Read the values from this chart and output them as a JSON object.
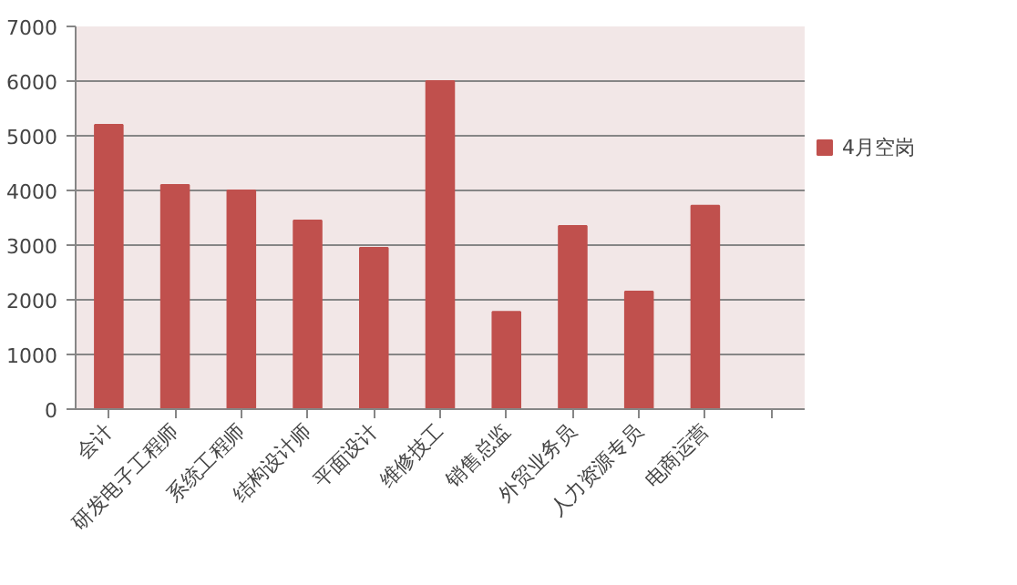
{
  "chart_data": {
    "type": "bar",
    "categories": [
      "会计",
      "研发电子工程师",
      "系统工程师",
      "结构设计师",
      "平面设计",
      "维修技工",
      "销售总监",
      "外贸业务员",
      "人力资源专员",
      "电商运营",
      null
    ],
    "series": [
      {
        "name": "4月空岗",
        "color": "#c0504d",
        "values": [
          5200,
          4100,
          4000,
          3450,
          2950,
          6000,
          1780,
          3350,
          2150,
          3720,
          null
        ]
      }
    ],
    "ylim": [
      0,
      7000
    ],
    "yticks": [
      0,
      1000,
      2000,
      3000,
      4000,
      5000,
      6000,
      7000
    ],
    "grid": "y",
    "legend": "right"
  }
}
